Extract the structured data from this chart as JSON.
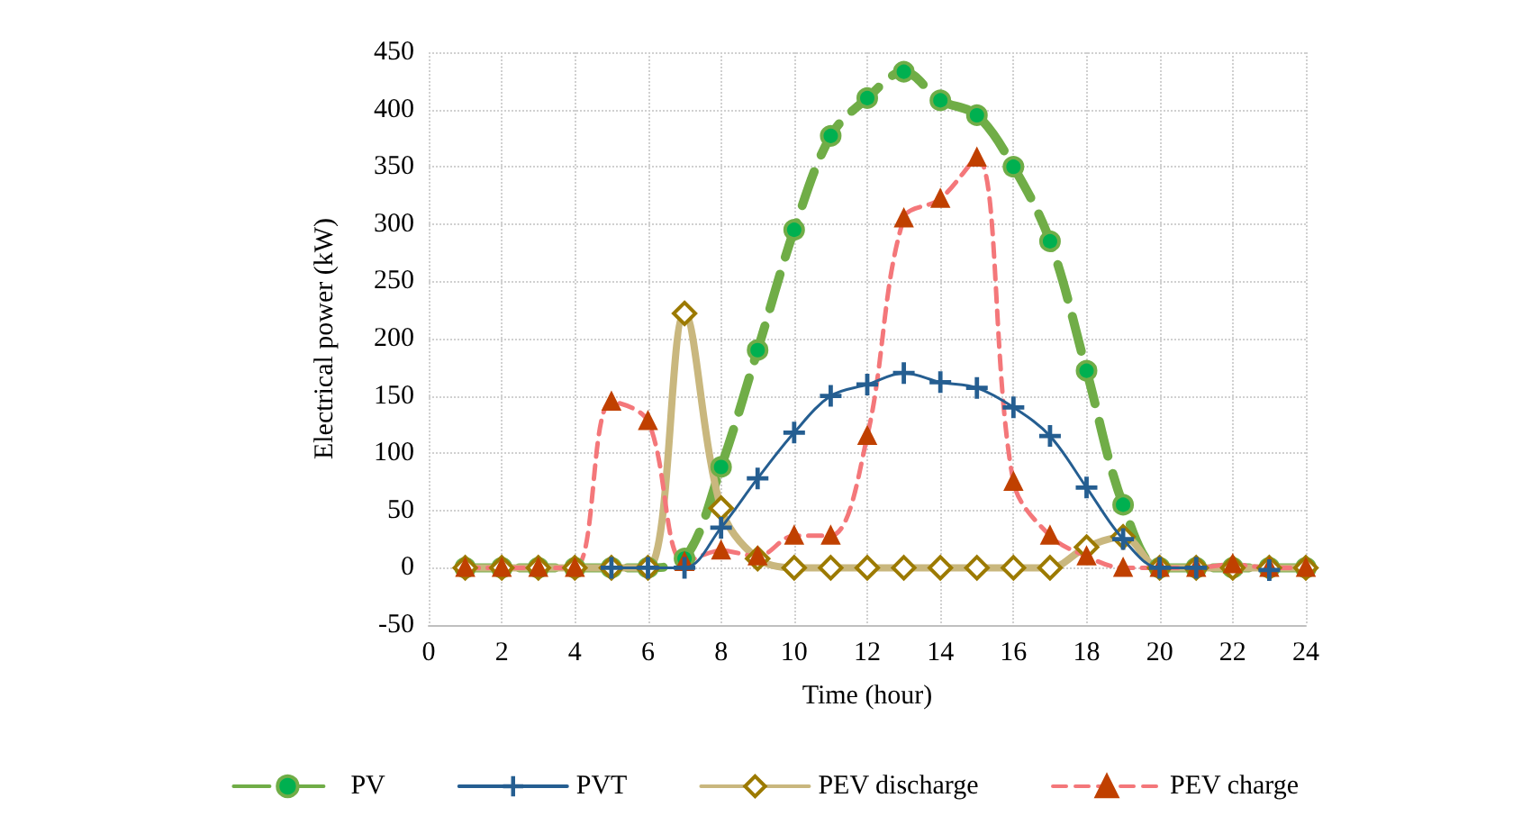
{
  "chart_data": {
    "type": "line",
    "xlabel": "Time (hour)",
    "ylabel": "Electrical power (kW)",
    "x": [
      1,
      2,
      3,
      4,
      5,
      6,
      7,
      8,
      9,
      10,
      11,
      12,
      13,
      14,
      15,
      16,
      17,
      18,
      19,
      20,
      21,
      22,
      23,
      24
    ],
    "xlim": [
      0,
      24
    ],
    "xticks": [
      0,
      2,
      4,
      6,
      8,
      10,
      12,
      14,
      16,
      18,
      20,
      22,
      24
    ],
    "ylim": [
      -50,
      450
    ],
    "yticks": [
      -50,
      0,
      50,
      100,
      150,
      200,
      250,
      300,
      350,
      400,
      450
    ],
    "grid": true,
    "legend": "bottom",
    "series": [
      {
        "name": "PV",
        "color": "#70ad47",
        "marker": "circle",
        "line_style": "dashed",
        "values": [
          0,
          0,
          0,
          0,
          0,
          0,
          8,
          88,
          190,
          295,
          377,
          410,
          433,
          408,
          395,
          350,
          285,
          172,
          55,
          0,
          0,
          0,
          0,
          0
        ]
      },
      {
        "name": "PVT",
        "color": "#255e91",
        "marker": "cross",
        "line_style": "solid",
        "values": [
          null,
          null,
          null,
          null,
          0,
          0,
          0,
          35,
          78,
          118,
          150,
          160,
          170,
          162,
          157,
          140,
          115,
          70,
          25,
          0,
          0,
          null,
          -2,
          null
        ]
      },
      {
        "name": "PEV discharge",
        "color": "#c9b77e",
        "marker": "diamond",
        "line_style": "solid",
        "values": [
          0,
          0,
          0,
          0,
          0,
          0,
          222,
          52,
          8,
          0,
          0,
          0,
          0,
          0,
          0,
          0,
          0,
          18,
          27,
          0,
          0,
          0,
          0,
          0
        ]
      },
      {
        "name": "PEV charge",
        "color": "#f4777a",
        "marker": "triangle",
        "line_style": "dashed",
        "values": [
          0,
          0,
          0,
          0,
          145,
          128,
          5,
          15,
          10,
          28,
          28,
          115,
          305,
          322,
          358,
          75,
          28,
          10,
          0,
          0,
          0,
          3,
          0,
          0
        ]
      }
    ]
  }
}
